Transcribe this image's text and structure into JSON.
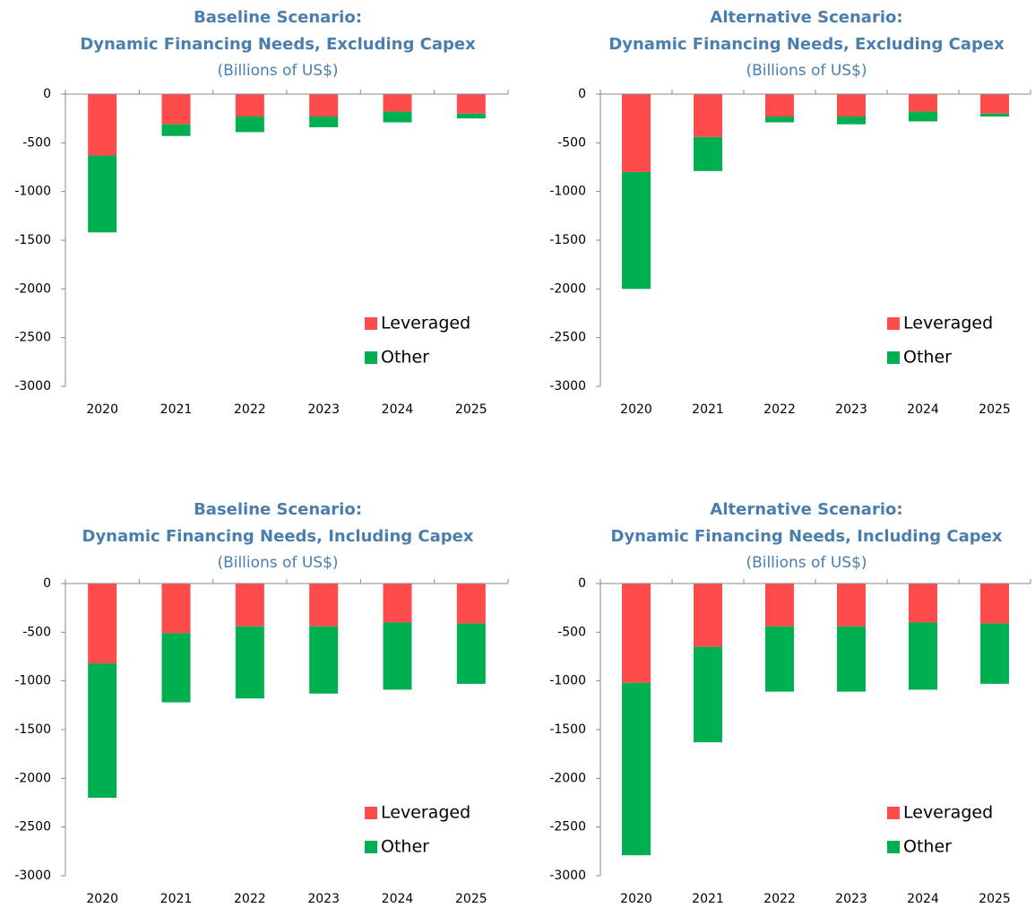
{
  "chart_data": [
    {
      "type": "bar",
      "stacked": true,
      "title": "Baseline Scenario:",
      "subtitle": "Dynamic Financing Needs, Excluding Capex",
      "units": "(Billions of US$)",
      "categories": [
        "2020",
        "2021",
        "2022",
        "2023",
        "2024",
        "2025"
      ],
      "series": [
        {
          "name": "Leveraged",
          "color": "#ff4b4b",
          "values": [
            -630,
            -310,
            -230,
            -230,
            -180,
            -200
          ]
        },
        {
          "name": "Other",
          "color": "#00b050",
          "values": [
            -790,
            -120,
            -160,
            -110,
            -110,
            -50
          ]
        }
      ],
      "ylim": [
        -3000,
        0
      ],
      "yticks": [
        0,
        -500,
        -1000,
        -1500,
        -2000,
        -2500,
        -3000
      ],
      "legend": "lower right"
    },
    {
      "type": "bar",
      "stacked": true,
      "title": "Alternative Scenario:",
      "subtitle": "Dynamic Financing Needs, Excluding Capex",
      "units": "(Billions of US$)",
      "categories": [
        "2020",
        "2021",
        "2022",
        "2023",
        "2024",
        "2025"
      ],
      "series": [
        {
          "name": "Leveraged",
          "color": "#ff4b4b",
          "values": [
            -800,
            -440,
            -230,
            -230,
            -180,
            -200
          ]
        },
        {
          "name": "Other",
          "color": "#00b050",
          "values": [
            -1200,
            -350,
            -60,
            -80,
            -100,
            -30
          ]
        }
      ],
      "ylim": [
        -3000,
        0
      ],
      "yticks": [
        0,
        -500,
        -1000,
        -1500,
        -2000,
        -2500,
        -3000
      ],
      "legend": "lower right"
    },
    {
      "type": "bar",
      "stacked": true,
      "title": "Baseline Scenario:",
      "subtitle": "Dynamic Financing Needs, Including Capex",
      "units": "(Billions of US$)",
      "categories": [
        "2020",
        "2021",
        "2022",
        "2023",
        "2024",
        "2025"
      ],
      "series": [
        {
          "name": "Leveraged",
          "color": "#ff4b4b",
          "values": [
            -820,
            -510,
            -440,
            -440,
            -400,
            -410
          ]
        },
        {
          "name": "Other",
          "color": "#00b050",
          "values": [
            -1380,
            -710,
            -740,
            -690,
            -690,
            -620
          ]
        }
      ],
      "ylim": [
        -3000,
        0
      ],
      "yticks": [
        0,
        -500,
        -1000,
        -1500,
        -2000,
        -2500,
        -3000
      ],
      "legend": "lower right"
    },
    {
      "type": "bar",
      "stacked": true,
      "title": "Alternative Scenario:",
      "subtitle": "Dynamic Financing Needs, Including Capex",
      "units": "(Billions of US$)",
      "categories": [
        "2020",
        "2021",
        "2022",
        "2023",
        "2024",
        "2025"
      ],
      "series": [
        {
          "name": "Leveraged",
          "color": "#ff4b4b",
          "values": [
            -1020,
            -650,
            -440,
            -440,
            -400,
            -410
          ]
        },
        {
          "name": "Other",
          "color": "#00b050",
          "values": [
            -1770,
            -980,
            -670,
            -670,
            -690,
            -620
          ]
        }
      ],
      "ylim": [
        -3000,
        0
      ],
      "yticks": [
        0,
        -500,
        -1000,
        -1500,
        -2000,
        -2500,
        -3000
      ],
      "legend": "lower right"
    }
  ]
}
